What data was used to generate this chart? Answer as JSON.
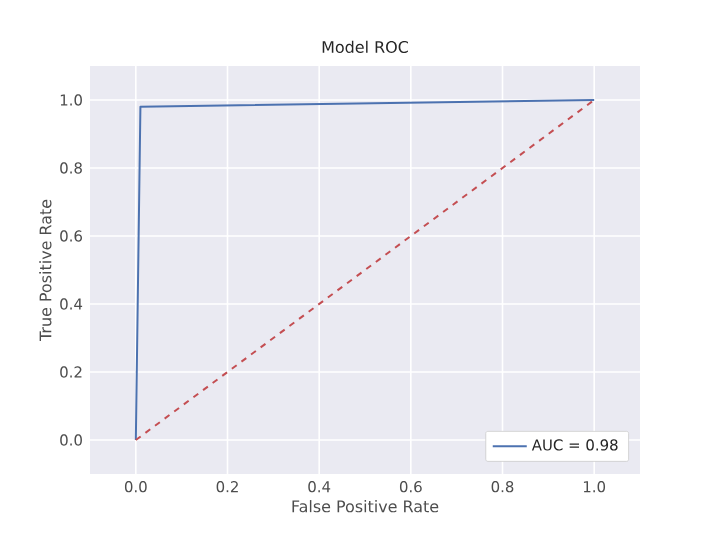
{
  "chart_data": {
    "type": "line",
    "title": "Model ROC",
    "xlabel": "False Positive Rate",
    "ylabel": "True Positive Rate",
    "xlim": [
      -0.1,
      1.1
    ],
    "ylim": [
      -0.1,
      1.1
    ],
    "xticks": [
      {
        "value": 0,
        "label": "0.0"
      },
      {
        "value": 0.2,
        "label": "0.2"
      },
      {
        "value": 0.4,
        "label": "0.4"
      },
      {
        "value": 0.6,
        "label": "0.6"
      },
      {
        "value": 0.8,
        "label": "0.8"
      },
      {
        "value": 1,
        "label": "1.0"
      }
    ],
    "yticks": [
      {
        "value": 0,
        "label": "0.0"
      },
      {
        "value": 0.2,
        "label": "0.2"
      },
      {
        "value": 0.4,
        "label": "0.4"
      },
      {
        "value": 0.6,
        "label": "0.6"
      },
      {
        "value": 0.8,
        "label": "0.8"
      },
      {
        "value": 1,
        "label": "1.0"
      }
    ],
    "grid": true,
    "legend": "bottom right",
    "line_style": "solid",
    "series": [
      {
        "name": "AUC = 0.98",
        "color": "#4c72b0",
        "x": [
          0,
          0.01,
          1
        ],
        "values": [
          0,
          0.98,
          1
        ]
      },
      {
        "color": "#c44e52",
        "x": [
          0,
          1
        ],
        "values": [
          0,
          1
        ],
        "line_style": "dashed"
      }
    ]
  }
}
